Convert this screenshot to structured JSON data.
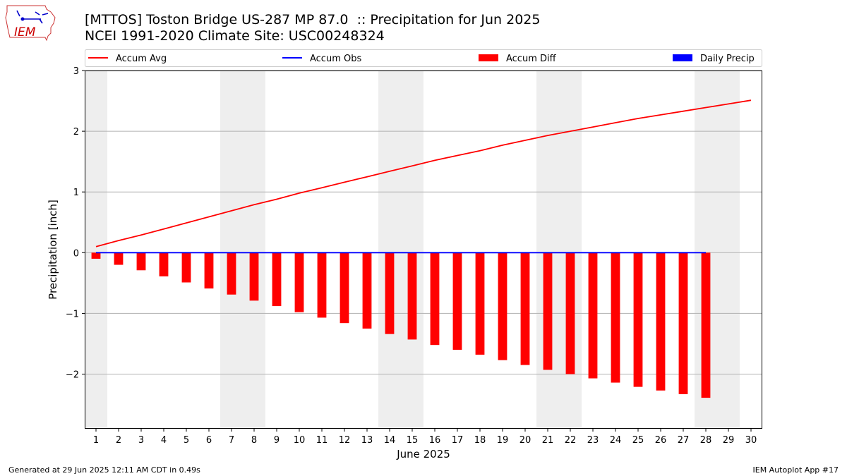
{
  "header": {
    "title_line1": "[MTTOS] Toston Bridge US-287 MP 87.0  :: Precipitation for Jun 2025",
    "title_line2": "NCEI 1991-2020 Climate Site: USC00248324"
  },
  "logo": {
    "text": "IEM",
    "icon": "iowa-state-map-icon",
    "color": "#cc0000"
  },
  "footer": {
    "generated": "Generated at 29 Jun 2025 12:11 AM CDT in 0.49s",
    "app": "IEM Autoplot App #17"
  },
  "chart_data": {
    "type": "bar",
    "xlabel": "June 2025",
    "ylabel": "Precipitation [inch]",
    "xlim": [
      0.5,
      30.5
    ],
    "ylim": [
      -2.9,
      3.0
    ],
    "yticks": [
      3,
      2,
      1,
      0,
      -1,
      -2
    ],
    "ytick_labels": [
      "3",
      "2",
      "1",
      "0",
      "−1",
      "−2"
    ],
    "x": [
      1,
      2,
      3,
      4,
      5,
      6,
      7,
      8,
      9,
      10,
      11,
      12,
      13,
      14,
      15,
      16,
      17,
      18,
      19,
      20,
      21,
      22,
      23,
      24,
      25,
      26,
      27,
      28,
      29,
      30
    ],
    "grid": "horizontal",
    "weekend_shading": [
      [
        0.5,
        1.5
      ],
      [
        6.5,
        8.5
      ],
      [
        13.5,
        15.5
      ],
      [
        20.5,
        22.5
      ],
      [
        27.5,
        29.5
      ]
    ],
    "legend": {
      "placement": "top",
      "entries": [
        {
          "label": "Accum Avg",
          "kind": "line",
          "color": "#ff0000"
        },
        {
          "label": "Accum Obs",
          "kind": "line",
          "color": "#0000ff"
        },
        {
          "label": "Accum Diff",
          "kind": "bar",
          "color": "#ff0000"
        },
        {
          "label": "Daily Precip",
          "kind": "bar",
          "color": "#0000ff"
        }
      ]
    },
    "series": [
      {
        "name": "Accum Avg",
        "type": "line",
        "color": "#ff0000",
        "x": [
          1,
          2,
          3,
          4,
          5,
          6,
          7,
          8,
          9,
          10,
          11,
          12,
          13,
          14,
          15,
          16,
          17,
          18,
          19,
          20,
          21,
          22,
          23,
          24,
          25,
          26,
          27,
          28,
          29,
          30
        ],
        "values": [
          0.1,
          0.2,
          0.29,
          0.39,
          0.49,
          0.59,
          0.69,
          0.79,
          0.88,
          0.98,
          1.07,
          1.16,
          1.25,
          1.34,
          1.43,
          1.52,
          1.6,
          1.68,
          1.77,
          1.85,
          1.93,
          2.0,
          2.07,
          2.14,
          2.21,
          2.27,
          2.33,
          2.39,
          2.45,
          2.51
        ]
      },
      {
        "name": "Accum Obs",
        "type": "line",
        "color": "#0000ff",
        "x": [
          1,
          2,
          3,
          4,
          5,
          6,
          7,
          8,
          9,
          10,
          11,
          12,
          13,
          14,
          15,
          16,
          17,
          18,
          19,
          20,
          21,
          22,
          23,
          24,
          25,
          26,
          27,
          28
        ],
        "values": [
          0,
          0,
          0,
          0,
          0,
          0,
          0,
          0,
          0,
          0,
          0,
          0,
          0,
          0,
          0,
          0,
          0,
          0,
          0,
          0,
          0,
          0,
          0,
          0,
          0,
          0,
          0,
          0
        ]
      },
      {
        "name": "Accum Diff",
        "type": "bar",
        "color": "#ff0000",
        "x": [
          1,
          2,
          3,
          4,
          5,
          6,
          7,
          8,
          9,
          10,
          11,
          12,
          13,
          14,
          15,
          16,
          17,
          18,
          19,
          20,
          21,
          22,
          23,
          24,
          25,
          26,
          27,
          28
        ],
        "values": [
          -0.1,
          -0.2,
          -0.29,
          -0.39,
          -0.49,
          -0.59,
          -0.69,
          -0.79,
          -0.88,
          -0.98,
          -1.07,
          -1.16,
          -1.25,
          -1.34,
          -1.43,
          -1.52,
          -1.6,
          -1.68,
          -1.77,
          -1.85,
          -1.93,
          -2.0,
          -2.07,
          -2.14,
          -2.21,
          -2.27,
          -2.33,
          -2.39
        ]
      },
      {
        "name": "Daily Precip",
        "type": "bar",
        "color": "#0000ff",
        "x": [
          1,
          2,
          3,
          4,
          5,
          6,
          7,
          8,
          9,
          10,
          11,
          12,
          13,
          14,
          15,
          16,
          17,
          18,
          19,
          20,
          21,
          22,
          23,
          24,
          25,
          26,
          27,
          28
        ],
        "values": [
          0,
          0,
          0,
          0,
          0,
          0,
          0,
          0,
          0,
          0,
          0,
          0,
          0,
          0,
          0,
          0,
          0,
          0,
          0,
          0,
          0,
          0,
          0,
          0,
          0,
          0,
          0,
          0
        ]
      }
    ]
  }
}
